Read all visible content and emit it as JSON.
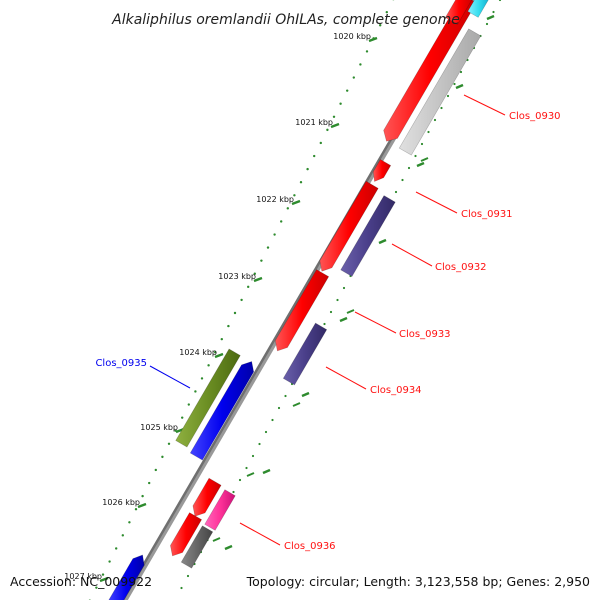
{
  "title": "Alkaliphilus oremlandii OhILAs, complete genome",
  "footer": {
    "accession": "Accession: NC_009922",
    "info": "Topology: circular; Length: 3,123,558 bp; Genes: 2,950"
  },
  "ruler": {
    "labels": [
      "1020 kbp",
      "1021 kbp",
      "1022 kbp",
      "1023 kbp",
      "1024 kbp",
      "1025 kbp",
      "1026 kbp",
      "1027 kbp"
    ],
    "tick_color": "#2e8b2e"
  },
  "genes": [
    {
      "id": "Clos_0930",
      "color": "#ff1111"
    },
    {
      "id": "Clos_0931",
      "color": "#ff1111"
    },
    {
      "id": "Clos_0932",
      "color": "#ff1111"
    },
    {
      "id": "Clos_0933",
      "color": "#ff1111"
    },
    {
      "id": "Clos_0934",
      "color": "#ff1111"
    },
    {
      "id": "Clos_0935",
      "color": "#0000ee"
    },
    {
      "id": "Clos_0936",
      "color": "#ff1111"
    }
  ],
  "colors": {
    "backbone": "#777777",
    "forward_gene": "#ff1111",
    "reverse_gene": "#0000ee",
    "cog_gray": "#c8c8c8",
    "cog_purple": "#4a3f8a",
    "cog_olive": "#6b8e23",
    "cog_pink": "#ff3399",
    "cog_cyan": "#33ddee",
    "cog_darkgray": "#666666"
  }
}
